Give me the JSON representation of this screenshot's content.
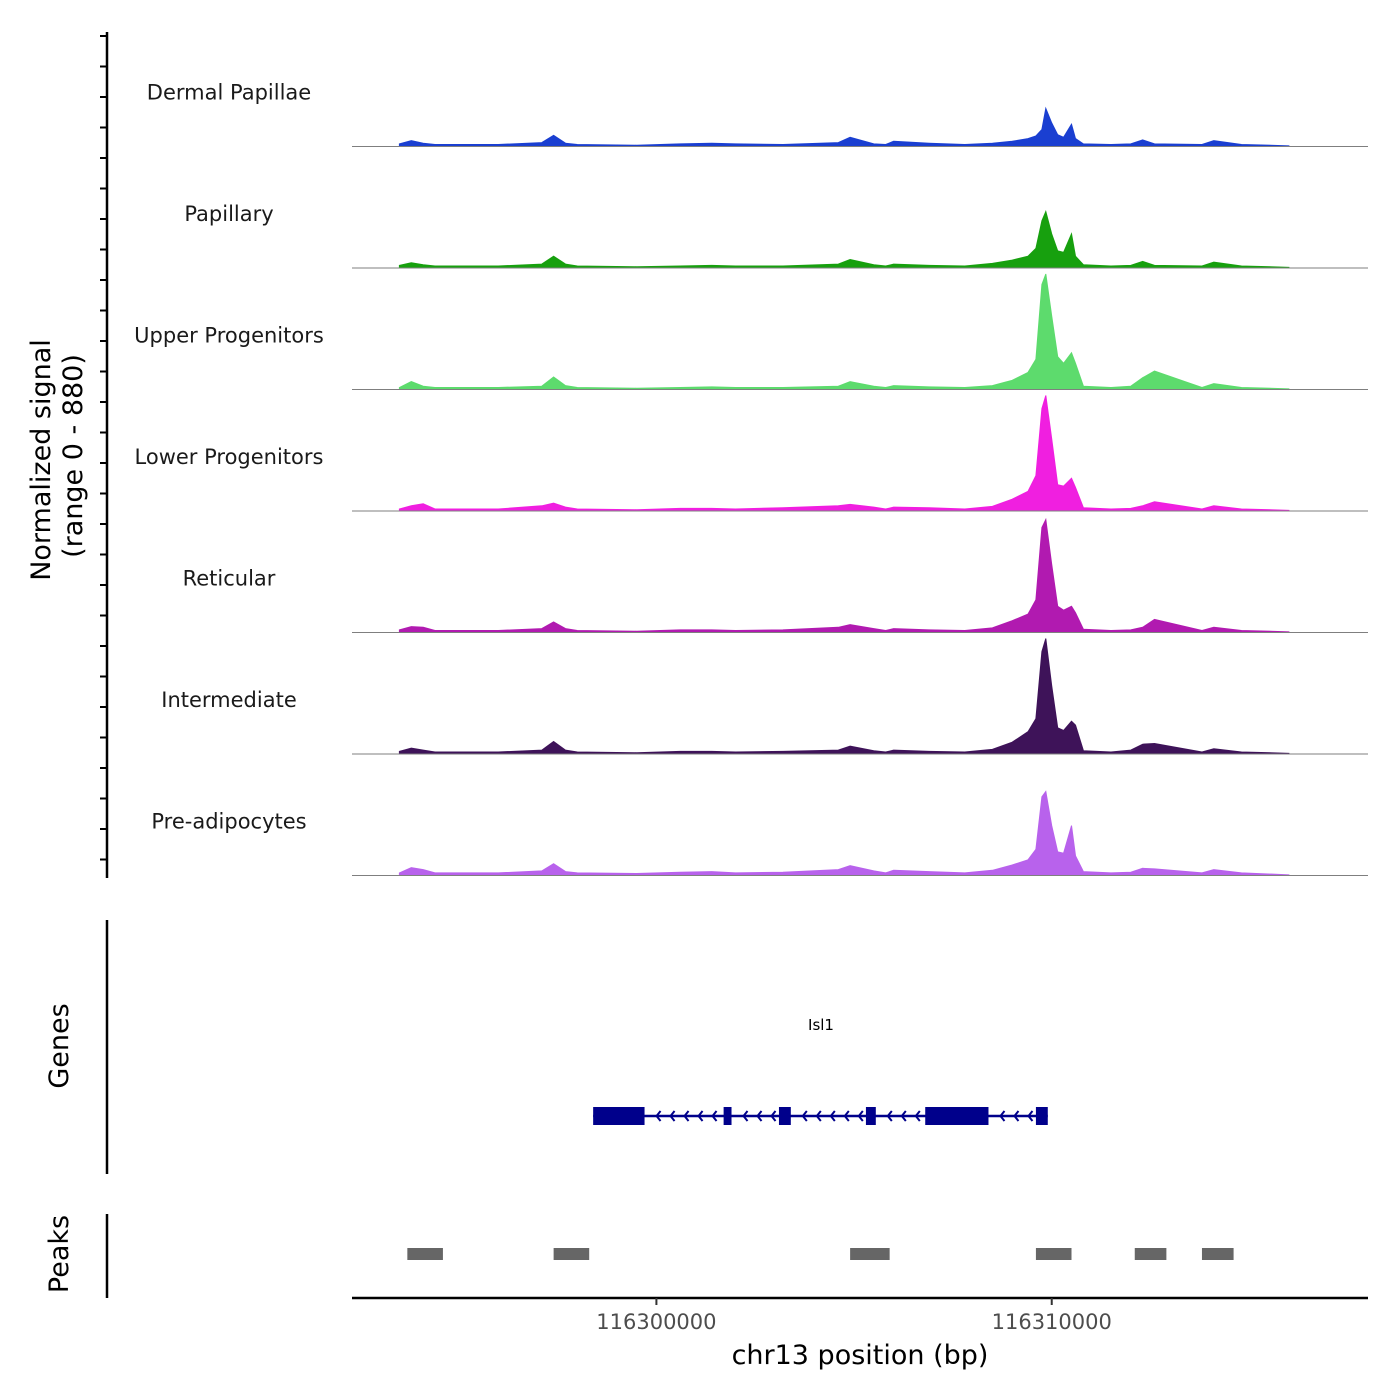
{
  "chart_data": {
    "type": "area",
    "title": "",
    "chromosome": "chr13",
    "xlabel": "chr13 position (bp)",
    "ylabel": "Normalized signal",
    "ylabel_range": "(range 0 - 880)",
    "ylim": [
      0,
      880
    ],
    "xlim": [
      116292300,
      116318000
    ],
    "x_ticks": [
      116300000,
      116310000
    ],
    "x_tick_labels": [
      "116300000",
      "116310000"
    ],
    "positions": [
      116293500,
      116293800,
      116294100,
      116294400,
      116296000,
      116297100,
      116297400,
      116297700,
      116298000,
      116299500,
      116300600,
      116301400,
      116302000,
      116303200,
      116304600,
      116304900,
      116305500,
      116305800,
      116306000,
      116306900,
      116307800,
      116308500,
      116309000,
      116309400,
      116309600,
      116309750,
      116309850,
      116310000,
      116310150,
      116310300,
      116310500,
      116310600,
      116310800,
      116311500,
      116312000,
      116312300,
      116312600,
      116313800,
      116314100,
      116314800,
      116316000
    ],
    "series": [
      {
        "name": "Dermal Papillae",
        "color": "#1a3fd1",
        "values": [
          20,
          45,
          25,
          15,
          15,
          30,
          85,
          25,
          15,
          10,
          20,
          25,
          20,
          15,
          30,
          70,
          20,
          15,
          40,
          25,
          15,
          25,
          40,
          60,
          80,
          130,
          290,
          180,
          90,
          70,
          170,
          60,
          20,
          15,
          20,
          50,
          20,
          15,
          45,
          15,
          5
        ]
      },
      {
        "name": "Papillary",
        "color": "#17a00e",
        "values": [
          20,
          40,
          25,
          15,
          15,
          30,
          90,
          30,
          15,
          10,
          15,
          20,
          15,
          15,
          30,
          65,
          25,
          15,
          30,
          20,
          15,
          35,
          60,
          90,
          150,
          360,
          430,
          260,
          130,
          120,
          260,
          90,
          25,
          15,
          20,
          50,
          20,
          15,
          45,
          15,
          5
        ]
      },
      {
        "name": "Upper Progenitors",
        "color": "#5ddb6d",
        "values": [
          15,
          60,
          25,
          15,
          15,
          25,
          95,
          30,
          15,
          10,
          15,
          20,
          15,
          15,
          25,
          60,
          25,
          15,
          30,
          20,
          15,
          30,
          70,
          130,
          230,
          800,
          880,
          560,
          250,
          200,
          280,
          200,
          25,
          15,
          25,
          90,
          140,
          15,
          45,
          15,
          5
        ]
      },
      {
        "name": "Lower Progenitors",
        "color": "#f01fe0",
        "values": [
          15,
          40,
          55,
          15,
          15,
          40,
          60,
          30,
          15,
          10,
          20,
          20,
          15,
          25,
          40,
          50,
          30,
          15,
          30,
          25,
          15,
          35,
          90,
          150,
          270,
          780,
          880,
          550,
          200,
          190,
          250,
          180,
          25,
          15,
          20,
          40,
          70,
          15,
          40,
          15,
          5
        ]
      },
      {
        "name": "Reticular",
        "color": "#b11ab0",
        "values": [
          20,
          45,
          40,
          15,
          15,
          30,
          80,
          30,
          15,
          10,
          20,
          20,
          15,
          20,
          40,
          60,
          30,
          15,
          30,
          20,
          15,
          35,
          90,
          140,
          250,
          800,
          860,
          520,
          200,
          170,
          200,
          150,
          25,
          15,
          20,
          40,
          100,
          15,
          40,
          15,
          5
        ]
      },
      {
        "name": "Intermediate",
        "color": "#3e1359",
        "values": [
          20,
          45,
          30,
          15,
          15,
          30,
          95,
          30,
          15,
          10,
          20,
          20,
          15,
          20,
          30,
          60,
          25,
          15,
          30,
          20,
          15,
          35,
          90,
          170,
          270,
          780,
          880,
          520,
          200,
          180,
          250,
          220,
          25,
          15,
          30,
          75,
          80,
          15,
          40,
          15,
          5
        ]
      },
      {
        "name": "Pre-adipocytes",
        "color": "#b862ec",
        "values": [
          20,
          60,
          45,
          20,
          20,
          35,
          90,
          30,
          20,
          15,
          25,
          30,
          20,
          25,
          45,
          75,
          35,
          20,
          40,
          30,
          20,
          40,
          80,
          120,
          200,
          600,
          640,
          380,
          180,
          170,
          380,
          150,
          30,
          20,
          25,
          55,
          50,
          20,
          45,
          20,
          5
        ]
      }
    ],
    "gene_track": {
      "label": "Genes",
      "gene_name": "Isl1",
      "strand": "-",
      "color": "#00008b",
      "start": 116298400,
      "end": 116309900,
      "exons": [
        [
          116298400,
          116299700
        ],
        [
          116301700,
          116301900
        ],
        [
          116303100,
          116303400
        ],
        [
          116305300,
          116305550
        ],
        [
          116306800,
          116308400
        ],
        [
          116309600,
          116309900
        ]
      ]
    },
    "peak_track": {
      "label": "Peaks",
      "color": "#666666",
      "peaks": [
        [
          116293700,
          116294600
        ],
        [
          116297400,
          116298300
        ],
        [
          116304900,
          116305900
        ],
        [
          116309600,
          116310500
        ],
        [
          116312100,
          116312900
        ],
        [
          116313800,
          116314600
        ]
      ]
    }
  }
}
